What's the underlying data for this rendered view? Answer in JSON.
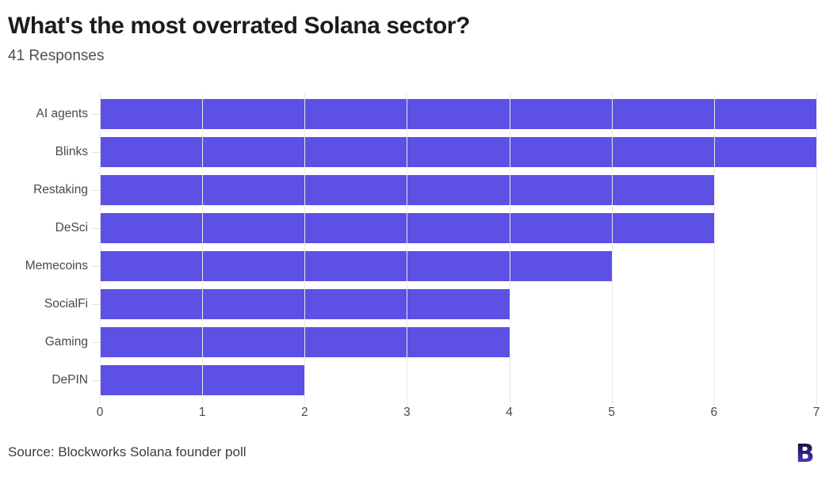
{
  "header": {
    "title": "What's the most overrated Solana sector?",
    "subtitle": "41 Responses"
  },
  "chart_data": {
    "type": "bar",
    "orientation": "horizontal",
    "title": "What's the most overrated Solana sector?",
    "subtitle": "41 Responses",
    "categories": [
      "AI agents",
      "Blinks",
      "Restaking",
      "DeSci",
      "Memecoins",
      "SocialFi",
      "Gaming",
      "DePIN"
    ],
    "values": [
      7,
      7,
      6,
      6,
      5,
      4,
      4,
      2
    ],
    "xlim": [
      0,
      7
    ],
    "x_ticks": [
      0,
      1,
      2,
      3,
      4,
      5,
      6,
      7
    ],
    "grid": true,
    "legend": "none",
    "bar_color": "#5c50e5"
  },
  "footer": {
    "source": "Source: Blockworks Solana founder poll",
    "logo": "blockworks-b-logo"
  },
  "colors": {
    "bar": "#5c50e5",
    "gridline": "#e8e8e8",
    "title_text": "#1c1c1c",
    "subtitle_text": "#4f4f4f",
    "axis_text": "#494949",
    "source_text": "#3c3c3c",
    "logo_gradient_top": "#14102a",
    "logo_gradient_mid": "#2f2483",
    "logo_gradient_bottom": "#5d44e8",
    "background": "#ffffff"
  }
}
